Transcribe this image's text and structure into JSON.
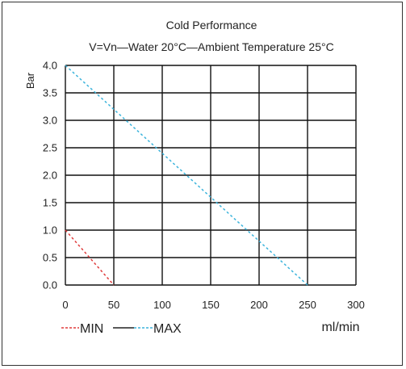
{
  "chart_data": {
    "type": "line",
    "title": "Cold Performance",
    "subtitle": "V=Vn—Water 20°C—Ambient Temperature 25°C",
    "ylabel": "Bar",
    "xlabel": "ml/min",
    "xlim": [
      0,
      300
    ],
    "ylim": [
      0,
      4.0
    ],
    "x_ticks": [
      "0",
      "50",
      "100",
      "150",
      "200",
      "250",
      "300"
    ],
    "y_ticks": [
      "0.0",
      "0.5",
      "1.0",
      "1.5",
      "2.0",
      "2.5",
      "3.0",
      "3.5",
      "4.0"
    ],
    "grid": true,
    "legend": {
      "placement": "bottom-left",
      "items": [
        "MIN",
        "MAX"
      ]
    },
    "series": [
      {
        "name": "MIN",
        "color": "#e03c3c",
        "style": "dashed",
        "x": [
          0,
          50
        ],
        "y": [
          1.0,
          0.0
        ]
      },
      {
        "name": "MAX",
        "color": "#3cb4dc",
        "style": "dashed",
        "x": [
          0,
          250
        ],
        "y": [
          4.0,
          0.0
        ]
      }
    ]
  }
}
